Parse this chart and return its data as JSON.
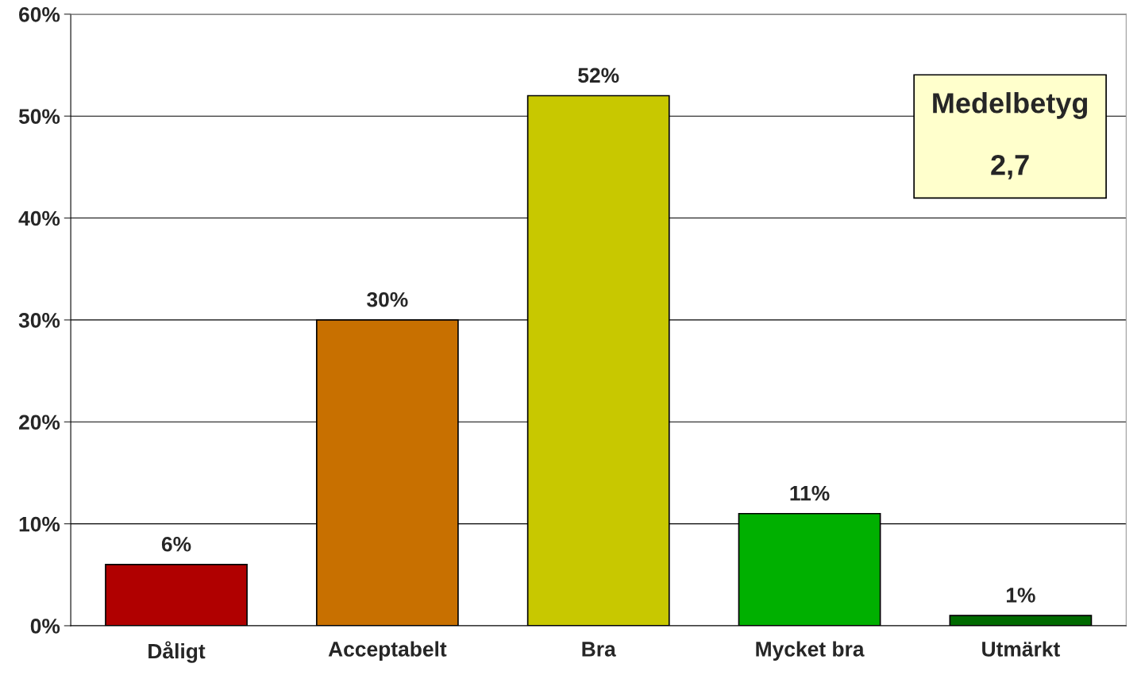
{
  "chart_data": {
    "type": "bar",
    "categories": [
      "Dåligt",
      "Acceptabelt",
      "Bra",
      "Mycket bra",
      "Utmärkt"
    ],
    "values": [
      6,
      30,
      52,
      11,
      1
    ],
    "colors": [
      "#b00000",
      "#c87000",
      "#c8c800",
      "#00b000",
      "#006a00"
    ],
    "data_labels": true,
    "value_labels": [
      "6%",
      "30%",
      "52%",
      "11%",
      "1%"
    ],
    "ylim": [
      0,
      60
    ],
    "yticks": [
      {
        "value": 0,
        "label": "0%"
      },
      {
        "value": 10,
        "label": "10%"
      },
      {
        "value": 20,
        "label": "20%"
      },
      {
        "value": 30,
        "label": "30%"
      },
      {
        "value": 40,
        "label": "40%"
      },
      {
        "value": 50,
        "label": "50%"
      },
      {
        "value": 60,
        "label": "60%"
      }
    ],
    "grid": "y",
    "annotations": [
      "Medelbetyg\n\n2,7"
    ]
  }
}
